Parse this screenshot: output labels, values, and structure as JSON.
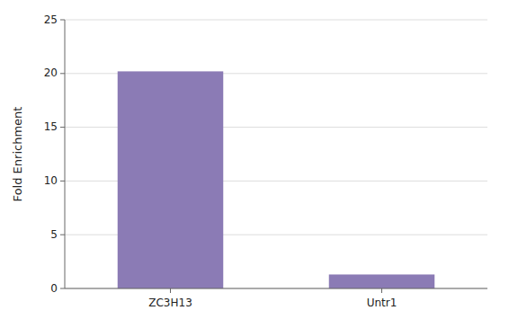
{
  "chart_data": {
    "type": "bar",
    "ylabel": "Fold Enrichment",
    "categories": [
      "ZC3H13",
      "Untr1"
    ],
    "values": [
      20.2,
      1.3
    ],
    "color": "#8B7BB5",
    "ylim": [
      0,
      25
    ],
    "yticks": [
      0,
      5,
      10,
      15,
      20,
      25
    ],
    "grid": true
  }
}
